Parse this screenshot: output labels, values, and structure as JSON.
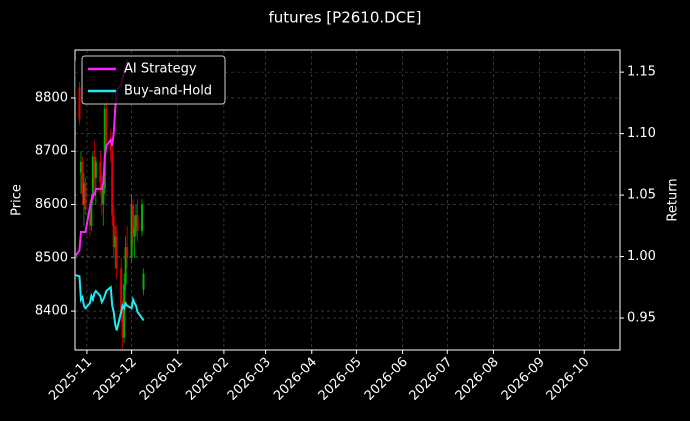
{
  "chart_data": {
    "type": "candlestick",
    "title": "futures [P2610.DCE]",
    "ylabel": "Price",
    "y2label": "Return",
    "x": [
      -8,
      -5,
      -4,
      -3,
      -2,
      -1,
      2,
      3,
      4,
      5,
      6,
      9,
      10,
      11,
      12,
      13,
      16,
      17,
      18,
      19,
      20,
      23,
      24,
      25,
      26,
      27,
      30,
      31,
      32,
      33,
      34,
      37,
      38
    ],
    "open": [
      8840,
      8820,
      8660,
      8680,
      8600,
      8640,
      8590,
      8560,
      8610,
      8690,
      8650,
      8680,
      8640,
      8600,
      8630,
      8780,
      8720,
      8700,
      8580,
      8520,
      8540,
      8480,
      8400,
      8350,
      8450,
      8520,
      8500,
      8600,
      8540,
      8560,
      8580,
      8550,
      8440
    ],
    "high": [
      8870,
      8830,
      8700,
      8690,
      8660,
      8650,
      8610,
      8620,
      8700,
      8720,
      8690,
      8700,
      8660,
      8640,
      8790,
      8800,
      8740,
      8720,
      8600,
      8560,
      8560,
      8500,
      8420,
      8470,
      8540,
      8560,
      8620,
      8610,
      8580,
      8600,
      8610,
      8610,
      8480
    ],
    "low": [
      8800,
      8750,
      8620,
      8600,
      8560,
      8580,
      8540,
      8550,
      8600,
      8630,
      8600,
      8620,
      8580,
      8560,
      8620,
      8700,
      8680,
      8560,
      8500,
      8480,
      8460,
      8380,
      8330,
      8340,
      8440,
      8480,
      8490,
      8520,
      8500,
      8540,
      8530,
      8540,
      8430
    ],
    "close": [
      8820,
      8760,
      8680,
      8620,
      8640,
      8590,
      8560,
      8610,
      8690,
      8650,
      8680,
      8640,
      8600,
      8630,
      8780,
      8720,
      8700,
      8580,
      8520,
      8540,
      8480,
      8400,
      8350,
      8450,
      8520,
      8500,
      8600,
      8540,
      8560,
      8580,
      8550,
      8600,
      8470
    ],
    "up_color": "#00b000",
    "down_color": "#e00000",
    "series": [
      {
        "name": "AI Strategy",
        "color": "#ff22ff",
        "axis": "y2",
        "values": [
          1.0,
          1.005,
          1.02,
          1.02,
          1.02,
          1.02,
          1.04,
          1.045,
          1.05,
          1.05,
          1.055,
          1.055,
          1.055,
          1.06,
          1.08,
          1.09,
          1.095,
          1.09,
          1.1,
          1.12,
          1.135,
          1.14,
          1.145,
          1.15,
          1.155,
          1.16,
          null,
          null,
          null,
          null,
          null,
          null,
          null
        ]
      },
      {
        "name": "Buy-and-Hold",
        "color": "#22e8f0",
        "axis": "y2",
        "values": [
          0.985,
          0.984,
          0.965,
          0.967,
          0.96,
          0.958,
          0.962,
          0.968,
          0.965,
          0.97,
          0.972,
          0.968,
          0.963,
          0.965,
          0.968,
          0.972,
          0.975,
          0.96,
          0.955,
          0.945,
          0.94,
          0.955,
          0.96,
          0.958,
          0.962,
          0.96,
          0.958,
          0.965,
          0.962,
          0.96,
          0.955,
          0.95,
          0.948
        ]
      }
    ],
    "xlim": [
      -8,
      358
    ],
    "xticks": [
      {
        "value": 0,
        "label": "2025-11"
      },
      {
        "value": 30,
        "label": "2025-12"
      },
      {
        "value": 61,
        "label": "2026-01"
      },
      {
        "value": 92,
        "label": "2026-02"
      },
      {
        "value": 120,
        "label": "2026-03"
      },
      {
        "value": 151,
        "label": "2026-04"
      },
      {
        "value": 181,
        "label": "2026-05"
      },
      {
        "value": 212,
        "label": "2026-06"
      },
      {
        "value": 242,
        "label": "2026-07"
      },
      {
        "value": 273,
        "label": "2026-08"
      },
      {
        "value": 304,
        "label": "2026-09"
      },
      {
        "value": 334,
        "label": "2026-10"
      }
    ],
    "ylim": [
      8327,
      8890
    ],
    "yticks": [
      8400,
      8500,
      8600,
      8700,
      8800
    ],
    "y2lim": [
      0.924,
      1.168
    ],
    "y2ticks": [
      0.95,
      {
        "value": 1,
        "label": "1.00"
      },
      1.05,
      {
        "value": 1.1,
        "label": "1.10"
      },
      1.15
    ],
    "grid": true,
    "legend": "upper left"
  }
}
